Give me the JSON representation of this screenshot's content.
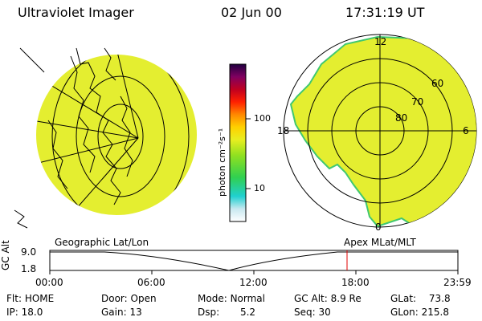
{
  "header": {
    "instrument": "Ultraviolet Imager",
    "date": "02 Jun 00",
    "time": "17:31:19 UT"
  },
  "colorbar": {
    "unit_label": "photon cm⁻²s⁻¹",
    "ticks": [
      "100",
      "10"
    ]
  },
  "polar_plot": {
    "mlt_labels": {
      "top": "12",
      "left": "18",
      "right": "6",
      "bottom": "0"
    },
    "lat_labels": [
      "60",
      "70",
      "80"
    ]
  },
  "captions": {
    "left": "Geographic Lat/Lon",
    "right": "Apex MLat/MLT"
  },
  "alt_chart": {
    "ylabel": "GC Alt",
    "y_ticks": [
      "9.0",
      "1.8"
    ],
    "x_ticks": [
      "00:00",
      "06:00",
      "12:00",
      "18:00",
      "23:59"
    ],
    "marker_time": "17:31:19"
  },
  "info": {
    "flt": {
      "label": "Flt:",
      "value": "HOME"
    },
    "ip": {
      "label": "IP:",
      "value": "18.0"
    },
    "door": {
      "label": "Door:",
      "value": "Open"
    },
    "gain": {
      "label": "Gain:",
      "value": "13"
    },
    "mode": {
      "label": "Mode:",
      "value": "Normal"
    },
    "dsp": {
      "label": "Dsp:",
      "value": "5.2"
    },
    "gcalt": {
      "label": "GC Alt:",
      "value": "8.9 Re"
    },
    "seq": {
      "label": "Seq:",
      "value": "30"
    },
    "glat": {
      "label": "GLat:",
      "value": "73.8"
    },
    "glon": {
      "label": "GLon:",
      "value": "215.8"
    }
  }
}
